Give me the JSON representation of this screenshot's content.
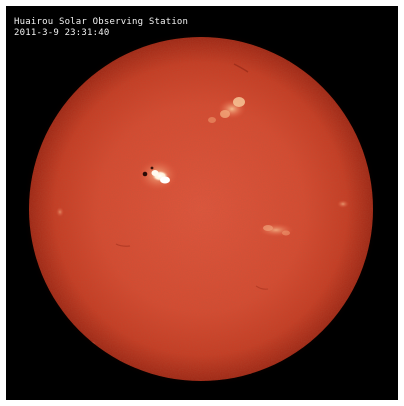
{
  "image": {
    "caption": {
      "station": "Huairou Solar Observing Station",
      "timestamp": "2011-3-9 23:31:40"
    },
    "colors": {
      "background": "#000000",
      "disk_center": "#e2553c",
      "disk_mid": "#d34229",
      "disk_limb": "#a82614",
      "plage": "#f4b07e",
      "flare_core": "#ffffff",
      "sunspot": "#2a0a05"
    }
  }
}
